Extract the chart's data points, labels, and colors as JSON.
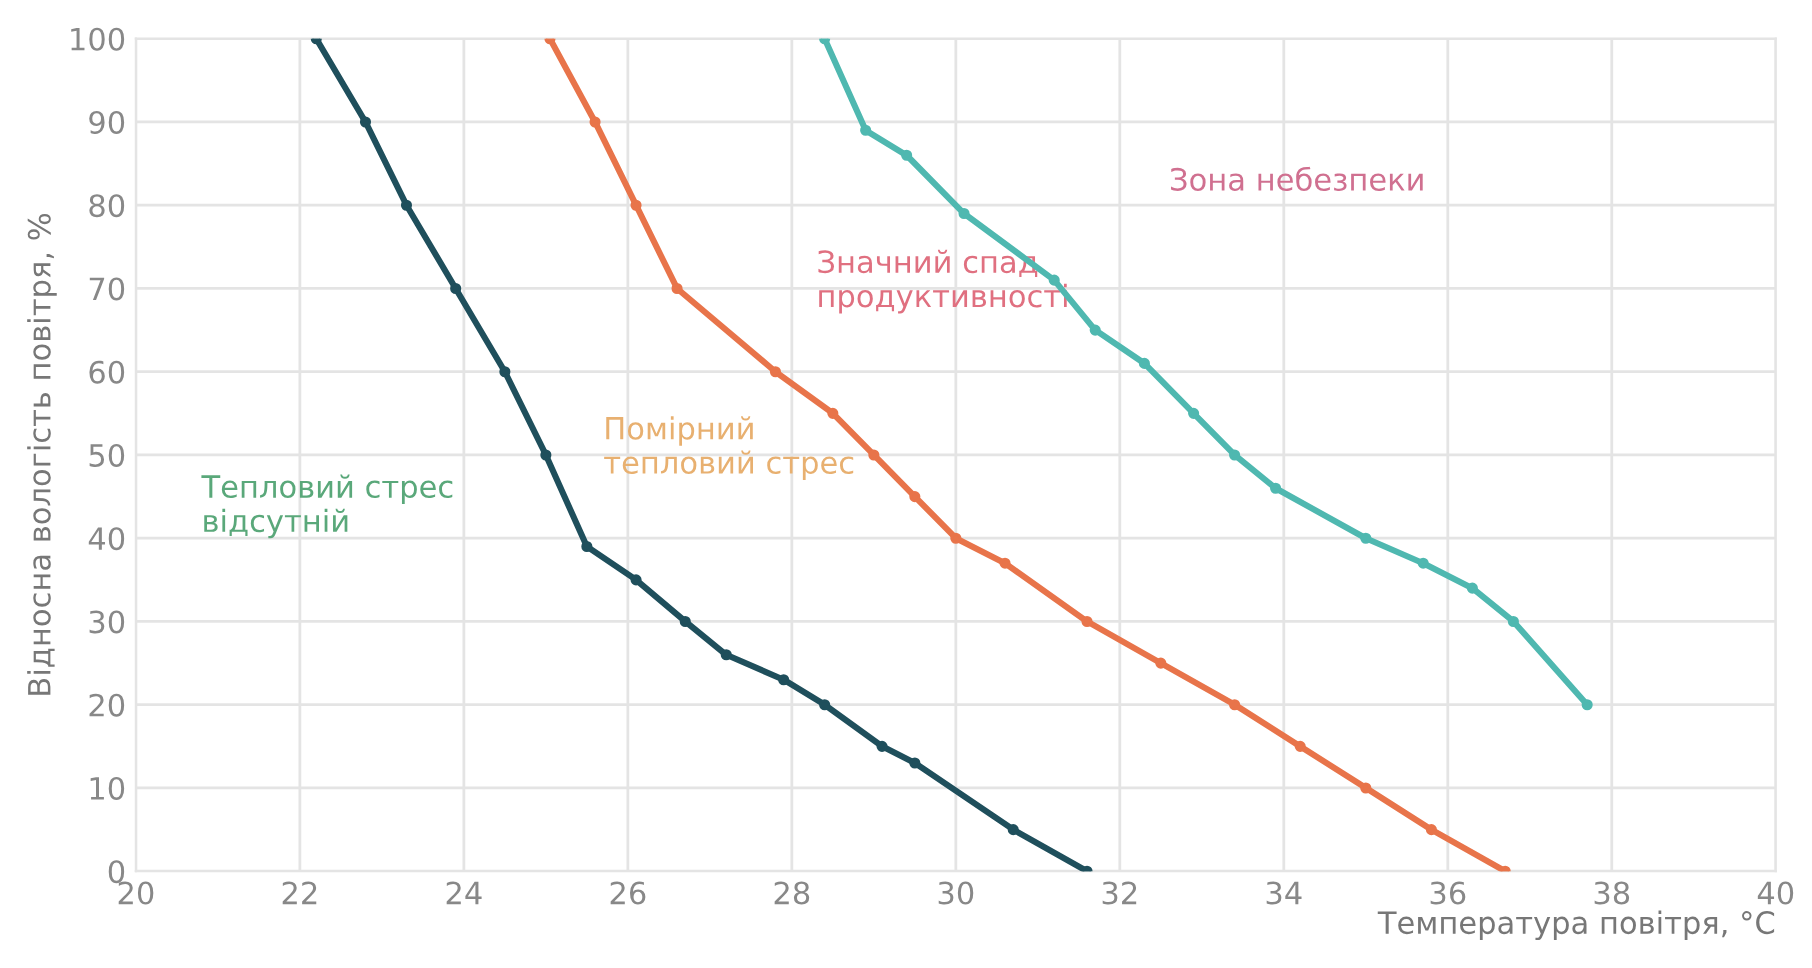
{
  "chart_data": {
    "type": "line",
    "xlabel": "Температура повітря, °C",
    "ylabel": "Відносна вологість повітря, %",
    "xlim": [
      20,
      40
    ],
    "ylim": [
      0,
      100
    ],
    "xticks": [
      20,
      22,
      24,
      26,
      28,
      30,
      32,
      34,
      36,
      38,
      40
    ],
    "yticks": [
      0,
      10,
      20,
      30,
      40,
      50,
      60,
      70,
      80,
      90,
      100
    ],
    "grid": true,
    "marker": "circle",
    "line_style": "solid",
    "series": [
      {
        "color": "#1f4f5c",
        "x": [
          22.2,
          22.8,
          23.3,
          23.9,
          24.5,
          25.0,
          25.5,
          26.1,
          26.7,
          27.2,
          27.9,
          28.4,
          29.1,
          29.5,
          30.7,
          31.6
        ],
        "values": [
          100,
          90,
          80,
          70,
          60,
          50,
          39,
          35,
          30,
          26,
          23,
          20,
          15,
          13,
          5,
          0
        ]
      },
      {
        "color": "#e8744a",
        "x": [
          25.05,
          25.6,
          26.1,
          26.6,
          27.8,
          28.5,
          29.0,
          29.5,
          30.0,
          30.6,
          31.6,
          32.5,
          33.4,
          34.2,
          35.0,
          35.8,
          36.7
        ],
        "values": [
          100,
          90,
          80,
          70,
          60,
          55,
          50,
          45,
          40,
          37,
          30,
          25,
          20,
          15,
          10,
          5,
          0
        ]
      },
      {
        "color": "#4fb8b0",
        "x": [
          28.4,
          28.9,
          29.4,
          30.1,
          31.2,
          31.7,
          32.3,
          32.9,
          33.4,
          33.9,
          35.0,
          35.7,
          36.3,
          36.8,
          37.7
        ],
        "values": [
          100,
          89,
          86,
          79,
          71,
          65,
          61,
          55,
          50,
          46,
          40,
          37,
          34,
          30,
          20
        ]
      }
    ],
    "annotations": [
      "Тепловий стрес\nвідсутній",
      "Помірний\nтепловий стрес",
      "Значний спад\nпродуктивності",
      "Зона небезпеки"
    ]
  }
}
